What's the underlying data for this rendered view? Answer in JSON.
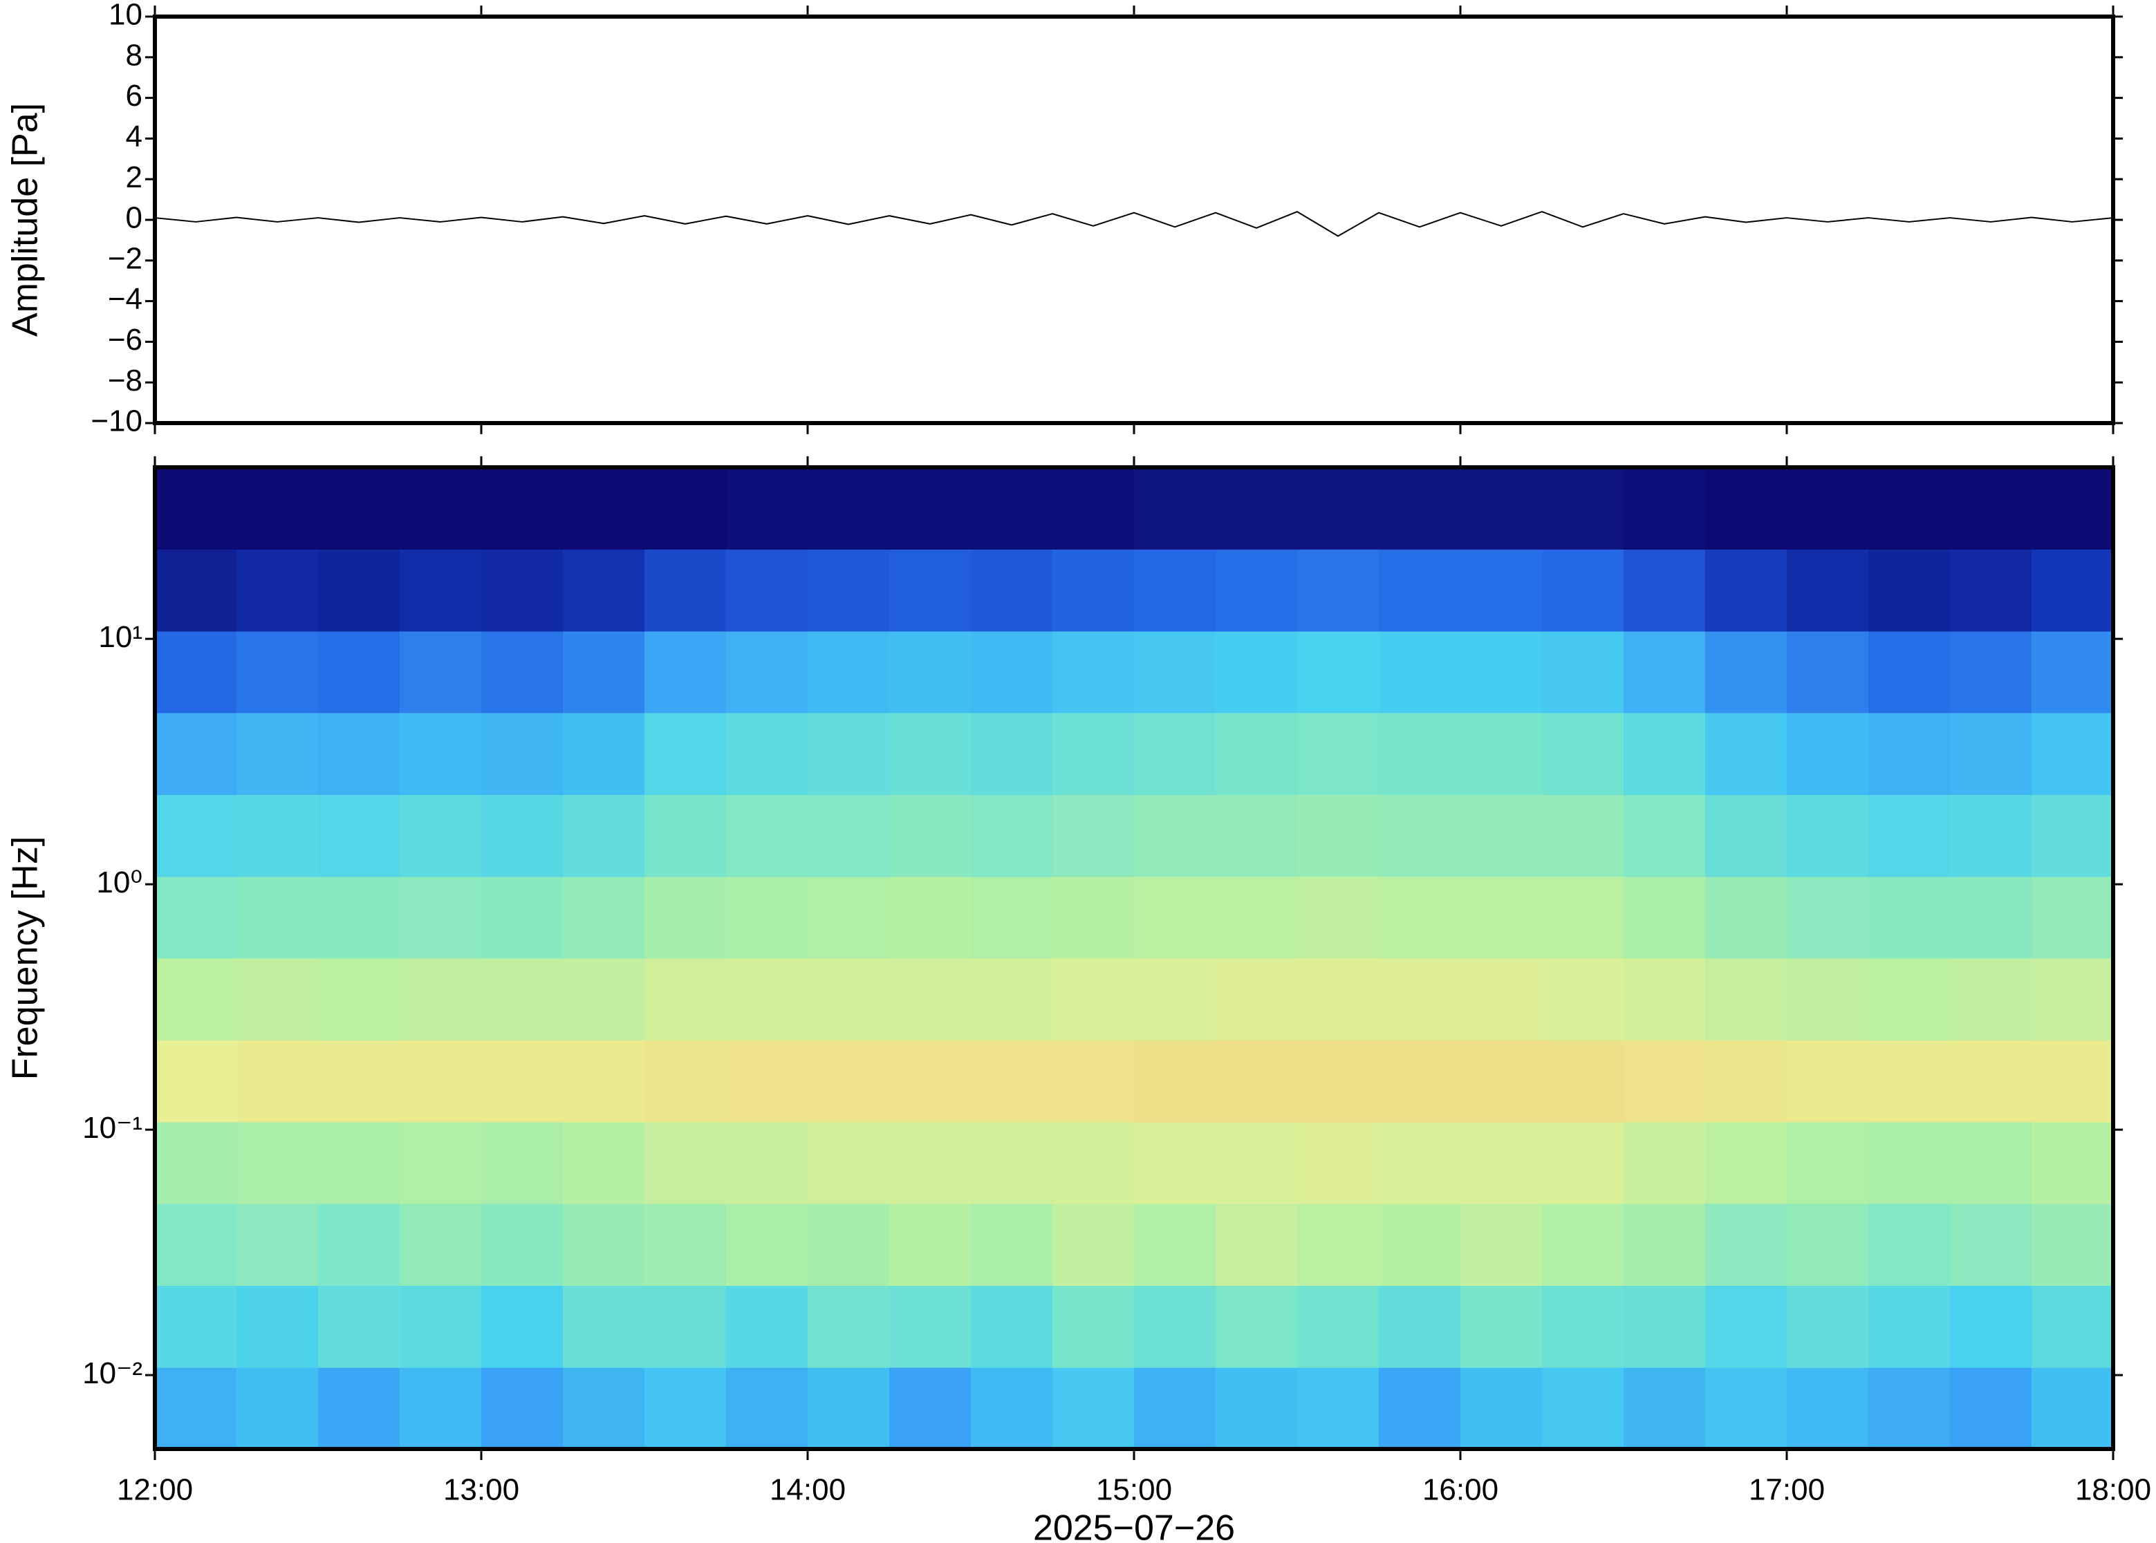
{
  "chart_data": [
    {
      "type": "line",
      "ylabel": "Amplitude [Pa]",
      "color": "#000000",
      "x": [
        12,
        12.125,
        12.25,
        12.375,
        12.5,
        12.625,
        12.75,
        12.875,
        13,
        13.125,
        13.25,
        13.375,
        13.5,
        13.625,
        13.75,
        13.875,
        14,
        14.125,
        14.25,
        14.375,
        14.5,
        14.625,
        14.75,
        14.875,
        15,
        15.125,
        15.25,
        15.375,
        15.5,
        15.625,
        15.75,
        15.875,
        16,
        16.125,
        16.25,
        16.375,
        16.5,
        16.625,
        16.75,
        16.875,
        17,
        17.125,
        17.25,
        17.375,
        17.5,
        17.625,
        17.75,
        17.875,
        18
      ],
      "values": [
        0.1,
        -0.1,
        0.12,
        -0.1,
        0.1,
        -0.12,
        0.1,
        -0.1,
        0.12,
        -0.1,
        0.15,
        -0.18,
        0.2,
        -0.2,
        0.18,
        -0.2,
        0.2,
        -0.22,
        0.2,
        -0.2,
        0.25,
        -0.25,
        0.3,
        -0.3,
        0.35,
        -0.35,
        0.35,
        -0.4,
        0.4,
        -0.8,
        0.35,
        -0.35,
        0.35,
        -0.3,
        0.4,
        -0.35,
        0.3,
        -0.2,
        0.15,
        -0.12,
        0.1,
        -0.1,
        0.1,
        -0.1,
        0.1,
        -0.1,
        0.12,
        -0.1,
        0.1
      ],
      "xlim": [
        12,
        18
      ],
      "xticks": [
        12,
        13,
        14,
        15,
        16,
        17,
        18
      ],
      "ylim": [
        -10,
        10
      ],
      "yticks": [
        {
          "value": -10,
          "label": "−10"
        },
        {
          "value": -8,
          "label": "−8"
        },
        {
          "value": -6,
          "label": "−6"
        },
        {
          "value": -4,
          "label": "−4"
        },
        {
          "value": -2,
          "label": "−2"
        },
        0,
        2,
        4,
        6,
        8,
        10
      ]
    },
    {
      "type": "spectrogram",
      "ylabel": "Frequency [Hz]",
      "xlabel": "2025−07−26",
      "xlim": [
        12,
        18
      ],
      "xticks": [
        {
          "value": 12,
          "label": "12:00"
        },
        {
          "value": 13,
          "label": "13:00"
        },
        {
          "value": 14,
          "label": "14:00"
        },
        {
          "value": 15,
          "label": "15:00"
        },
        {
          "value": 16,
          "label": "16:00"
        },
        {
          "value": 17,
          "label": "17:00"
        },
        {
          "value": 18,
          "label": "18:00"
        }
      ],
      "ylim": [
        0.005,
        50
      ],
      "log_y": true,
      "yticks": [
        {
          "value": 0.01,
          "label": "10⁻²"
        },
        {
          "value": 0.1,
          "label": "10⁻¹"
        },
        {
          "value": 1,
          "label": "10⁰"
        },
        {
          "value": 10,
          "label": "10¹"
        }
      ],
      "zlim": [
        0,
        1
      ],
      "colormap": [
        "#0b0b73",
        "#1436b8",
        "#2468e6",
        "#3aa2f6",
        "#48d2f0",
        "#7ce6c8",
        "#b6f0a2",
        "#e8ee94",
        "#f8c878",
        "#f48a50",
        "#d83a2a"
      ],
      "z": [
        [
          0.33,
          0.36,
          0.31,
          0.35,
          0.3,
          0.34,
          0.37,
          0.33,
          0.36,
          0.3,
          0.35,
          0.38,
          0.33,
          0.36,
          0.37,
          0.31,
          0.36,
          0.38,
          0.34,
          0.37,
          0.35,
          0.32,
          0.3,
          0.36
        ],
        [
          0.43,
          0.41,
          0.45,
          0.44,
          0.4,
          0.46,
          0.46,
          0.43,
          0.48,
          0.47,
          0.44,
          0.49,
          0.47,
          0.5,
          0.48,
          0.45,
          0.49,
          0.47,
          0.46,
          0.42,
          0.45,
          0.43,
          0.4,
          0.44
        ],
        [
          0.51,
          0.53,
          0.5,
          0.54,
          0.52,
          0.55,
          0.56,
          0.58,
          0.57,
          0.6,
          0.58,
          0.62,
          0.59,
          0.63,
          0.61,
          0.6,
          0.62,
          0.59,
          0.57,
          0.53,
          0.54,
          0.51,
          0.53,
          0.55
        ],
        [
          0.57,
          0.58,
          0.58,
          0.59,
          0.58,
          0.6,
          0.63,
          0.64,
          0.65,
          0.66,
          0.65,
          0.66,
          0.67,
          0.67,
          0.68,
          0.67,
          0.67,
          0.67,
          0.64,
          0.61,
          0.59,
          0.58,
          0.58,
          0.6
        ],
        [
          0.7,
          0.71,
          0.71,
          0.71,
          0.71,
          0.71,
          0.72,
          0.73,
          0.73,
          0.73,
          0.73,
          0.73,
          0.74,
          0.74,
          0.74,
          0.74,
          0.74,
          0.74,
          0.73,
          0.72,
          0.71,
          0.71,
          0.71,
          0.71
        ],
        [
          0.61,
          0.62,
          0.61,
          0.62,
          0.62,
          0.62,
          0.65,
          0.66,
          0.66,
          0.66,
          0.66,
          0.67,
          0.67,
          0.68,
          0.68,
          0.68,
          0.68,
          0.67,
          0.66,
          0.63,
          0.62,
          0.61,
          0.62,
          0.63
        ],
        [
          0.51,
          0.52,
          0.52,
          0.53,
          0.52,
          0.54,
          0.57,
          0.58,
          0.59,
          0.6,
          0.59,
          0.6,
          0.61,
          0.61,
          0.62,
          0.61,
          0.61,
          0.61,
          0.58,
          0.55,
          0.53,
          0.52,
          0.52,
          0.54
        ],
        [
          0.42,
          0.43,
          0.42,
          0.44,
          0.43,
          0.45,
          0.49,
          0.51,
          0.51,
          0.52,
          0.51,
          0.53,
          0.54,
          0.54,
          0.55,
          0.54,
          0.54,
          0.54,
          0.51,
          0.46,
          0.44,
          0.42,
          0.43,
          0.45
        ],
        [
          0.32,
          0.34,
          0.33,
          0.35,
          0.34,
          0.36,
          0.42,
          0.44,
          0.45,
          0.46,
          0.45,
          0.47,
          0.48,
          0.49,
          0.5,
          0.49,
          0.49,
          0.48,
          0.44,
          0.38,
          0.35,
          0.33,
          0.34,
          0.37
        ],
        [
          0.2,
          0.22,
          0.21,
          0.24,
          0.22,
          0.25,
          0.31,
          0.33,
          0.35,
          0.36,
          0.35,
          0.37,
          0.38,
          0.39,
          0.4,
          0.39,
          0.39,
          0.38,
          0.33,
          0.27,
          0.24,
          0.21,
          0.22,
          0.26
        ],
        [
          0.05,
          0.07,
          0.06,
          0.08,
          0.07,
          0.09,
          0.14,
          0.16,
          0.17,
          0.18,
          0.17,
          0.19,
          0.2,
          0.21,
          0.22,
          0.21,
          0.21,
          0.2,
          0.16,
          0.11,
          0.08,
          0.06,
          0.07,
          0.1
        ],
        [
          0,
          0,
          0,
          0,
          0,
          0,
          0,
          0.01,
          0.01,
          0.01,
          0.01,
          0.01,
          0.02,
          0.02,
          0.02,
          0.02,
          0.02,
          0.02,
          0.01,
          0,
          0,
          0,
          0,
          0
        ]
      ]
    }
  ]
}
